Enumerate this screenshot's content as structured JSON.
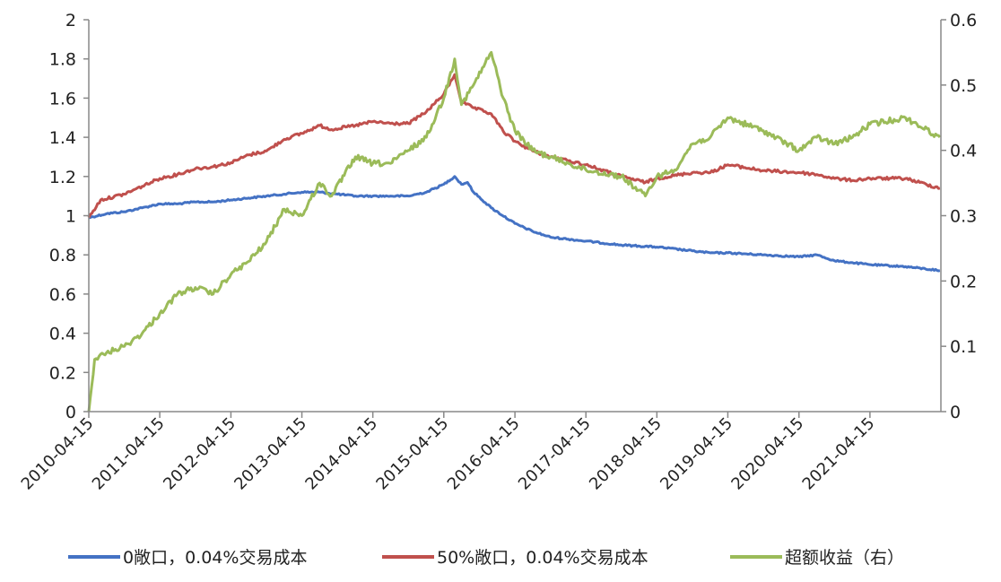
{
  "chart_data": {
    "type": "line",
    "title": "",
    "xlabel": "",
    "ylabel": "",
    "y_left": {
      "min": 0,
      "max": 2,
      "ticks": [
        "0",
        "0.2",
        "0.4",
        "0.6",
        "0.8",
        "1",
        "1.2",
        "1.4",
        "1.6",
        "1.8",
        "2"
      ]
    },
    "y_right": {
      "min": 0,
      "max": 0.6,
      "ticks": [
        "0",
        "0.1",
        "0.2",
        "0.3",
        "0.4",
        "0.5",
        "0.6"
      ]
    },
    "x_range": [
      "2010-04-15",
      "2022-04-15"
    ],
    "x_ticks": [
      "2010-04-15",
      "2011-04-15",
      "2012-04-15",
      "2013-04-15",
      "2014-04-15",
      "2015-04-15",
      "2016-04-15",
      "2017-04-15",
      "2018-04-15",
      "2019-04-15",
      "2020-04-15",
      "2021-04-15"
    ],
    "legend_position": "bottom",
    "grid": false,
    "series": [
      {
        "name": "0敞口，0.04%交易成本",
        "axis": "left",
        "color": "#4472C4",
        "points": [
          [
            "2010-04-15",
            0.99
          ],
          [
            "2010-07-15",
            1.01
          ],
          [
            "2010-10-15",
            1.02
          ],
          [
            "2011-01-15",
            1.04
          ],
          [
            "2011-04-15",
            1.06
          ],
          [
            "2011-07-15",
            1.06
          ],
          [
            "2011-10-15",
            1.07
          ],
          [
            "2012-01-15",
            1.07
          ],
          [
            "2012-04-15",
            1.08
          ],
          [
            "2012-07-15",
            1.09
          ],
          [
            "2012-10-15",
            1.1
          ],
          [
            "2013-01-15",
            1.11
          ],
          [
            "2013-04-15",
            1.12
          ],
          [
            "2013-07-15",
            1.12
          ],
          [
            "2013-10-15",
            1.11
          ],
          [
            "2014-01-15",
            1.1
          ],
          [
            "2014-04-15",
            1.1
          ],
          [
            "2014-07-15",
            1.1
          ],
          [
            "2014-10-15",
            1.1
          ],
          [
            "2015-01-15",
            1.12
          ],
          [
            "2015-04-15",
            1.16
          ],
          [
            "2015-06-10",
            1.2
          ],
          [
            "2015-07-15",
            1.16
          ],
          [
            "2015-08-15",
            1.17
          ],
          [
            "2015-09-15",
            1.12
          ],
          [
            "2015-12-15",
            1.04
          ],
          [
            "2016-04-15",
            0.96
          ],
          [
            "2016-07-15",
            0.92
          ],
          [
            "2016-10-15",
            0.89
          ],
          [
            "2017-01-15",
            0.88
          ],
          [
            "2017-04-15",
            0.87
          ],
          [
            "2017-10-15",
            0.85
          ],
          [
            "2018-04-15",
            0.84
          ],
          [
            "2018-10-15",
            0.82
          ],
          [
            "2019-01-15",
            0.81
          ],
          [
            "2019-04-15",
            0.81
          ],
          [
            "2019-10-15",
            0.8
          ],
          [
            "2020-04-15",
            0.79
          ],
          [
            "2020-07-15",
            0.8
          ],
          [
            "2020-10-15",
            0.77
          ],
          [
            "2021-01-15",
            0.76
          ],
          [
            "2021-04-15",
            0.75
          ],
          [
            "2021-10-15",
            0.74
          ],
          [
            "2022-04-10",
            0.72
          ]
        ]
      },
      {
        "name": "50%敞口，0.04%交易成本",
        "axis": "left",
        "color": "#C0504D",
        "points": [
          [
            "2010-04-15",
            0.99
          ],
          [
            "2010-06-15",
            1.08
          ],
          [
            "2010-10-15",
            1.11
          ],
          [
            "2011-01-15",
            1.15
          ],
          [
            "2011-04-15",
            1.19
          ],
          [
            "2011-07-15",
            1.21
          ],
          [
            "2011-10-15",
            1.24
          ],
          [
            "2012-01-15",
            1.25
          ],
          [
            "2012-04-15",
            1.27
          ],
          [
            "2012-07-15",
            1.31
          ],
          [
            "2012-10-15",
            1.33
          ],
          [
            "2013-01-15",
            1.39
          ],
          [
            "2013-04-15",
            1.42
          ],
          [
            "2013-07-15",
            1.46
          ],
          [
            "2013-09-15",
            1.44
          ],
          [
            "2014-01-15",
            1.46
          ],
          [
            "2014-04-15",
            1.48
          ],
          [
            "2014-07-15",
            1.47
          ],
          [
            "2014-10-15",
            1.47
          ],
          [
            "2015-01-15",
            1.53
          ],
          [
            "2015-04-15",
            1.62
          ],
          [
            "2015-06-10",
            1.72
          ],
          [
            "2015-07-15",
            1.58
          ],
          [
            "2015-09-15",
            1.55
          ],
          [
            "2015-12-15",
            1.52
          ],
          [
            "2016-02-15",
            1.43
          ],
          [
            "2016-04-15",
            1.38
          ],
          [
            "2016-07-15",
            1.33
          ],
          [
            "2016-10-15",
            1.3
          ],
          [
            "2017-01-15",
            1.28
          ],
          [
            "2017-04-15",
            1.26
          ],
          [
            "2017-10-15",
            1.2
          ],
          [
            "2018-02-15",
            1.17
          ],
          [
            "2018-04-15",
            1.19
          ],
          [
            "2018-10-15",
            1.22
          ],
          [
            "2019-01-15",
            1.22
          ],
          [
            "2019-04-15",
            1.26
          ],
          [
            "2019-10-15",
            1.23
          ],
          [
            "2020-04-15",
            1.22
          ],
          [
            "2020-07-15",
            1.21
          ],
          [
            "2020-10-15",
            1.19
          ],
          [
            "2021-01-15",
            1.18
          ],
          [
            "2021-04-15",
            1.19
          ],
          [
            "2021-10-15",
            1.19
          ],
          [
            "2022-04-10",
            1.14
          ]
        ]
      },
      {
        "name": "超额收益（右）",
        "axis": "right",
        "color": "#9BBB59",
        "points": [
          [
            "2010-04-15",
            0.0
          ],
          [
            "2010-05-15",
            0.08
          ],
          [
            "2010-07-15",
            0.09
          ],
          [
            "2010-10-15",
            0.1
          ],
          [
            "2011-01-15",
            0.12
          ],
          [
            "2011-04-15",
            0.15
          ],
          [
            "2011-07-15",
            0.18
          ],
          [
            "2011-10-15",
            0.19
          ],
          [
            "2012-01-15",
            0.18
          ],
          [
            "2012-04-15",
            0.21
          ],
          [
            "2012-07-15",
            0.23
          ],
          [
            "2012-10-15",
            0.26
          ],
          [
            "2013-01-15",
            0.31
          ],
          [
            "2013-04-15",
            0.3
          ],
          [
            "2013-07-15",
            0.35
          ],
          [
            "2013-09-15",
            0.33
          ],
          [
            "2014-01-15",
            0.39
          ],
          [
            "2014-04-15",
            0.38
          ],
          [
            "2014-07-15",
            0.38
          ],
          [
            "2014-10-15",
            0.4
          ],
          [
            "2015-01-15",
            0.42
          ],
          [
            "2015-04-15",
            0.48
          ],
          [
            "2015-06-10",
            0.54
          ],
          [
            "2015-07-15",
            0.47
          ],
          [
            "2015-09-15",
            0.5
          ],
          [
            "2015-12-15",
            0.55
          ],
          [
            "2016-02-15",
            0.48
          ],
          [
            "2016-04-15",
            0.43
          ],
          [
            "2016-07-15",
            0.4
          ],
          [
            "2016-10-15",
            0.39
          ],
          [
            "2017-01-15",
            0.38
          ],
          [
            "2017-04-15",
            0.37
          ],
          [
            "2017-10-15",
            0.36
          ],
          [
            "2018-02-15",
            0.33
          ],
          [
            "2018-04-15",
            0.36
          ],
          [
            "2018-07-15",
            0.37
          ],
          [
            "2018-10-15",
            0.41
          ],
          [
            "2019-01-15",
            0.42
          ],
          [
            "2019-04-15",
            0.45
          ],
          [
            "2019-10-15",
            0.43
          ],
          [
            "2020-04-15",
            0.4
          ],
          [
            "2020-07-15",
            0.42
          ],
          [
            "2020-10-15",
            0.41
          ],
          [
            "2021-01-15",
            0.42
          ],
          [
            "2021-04-15",
            0.44
          ],
          [
            "2021-10-15",
            0.45
          ],
          [
            "2022-04-10",
            0.42
          ]
        ]
      }
    ]
  }
}
